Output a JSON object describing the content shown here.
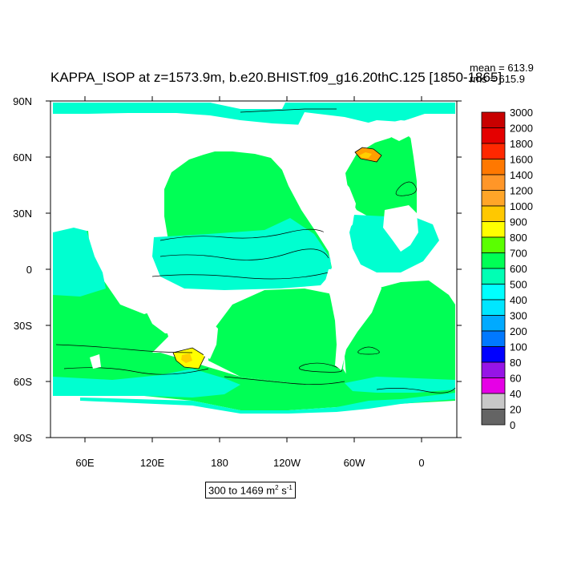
{
  "map": {
    "title": "KAPPA_ISOP at z=1573.9m, b.e20.BHIST.f09_g16.20thC.125 [1850-1865]",
    "stats": {
      "mean": "mean = 613.9",
      "rms": "rms = 615.9"
    },
    "units": {
      "range_text": "300 to 1469 m",
      "exp1": "2",
      "unit2": " s",
      "exp2": "-1"
    },
    "lat_labels": [
      "90N",
      "60N",
      "30N",
      "0",
      "30S",
      "60S",
      "90S"
    ],
    "lon_labels": [
      "60E",
      "120E",
      "180",
      "120W",
      "60W",
      "0"
    ],
    "colors": {
      "ocean_main": "#00ff55",
      "ocean_band": "#00ffd0",
      "land": "#ffffff",
      "contour": "#000000",
      "high_1000": "#ffd000",
      "high_1200": "#ffa000",
      "high_1400": "#ff8c22"
    }
  },
  "legend": {
    "levels": [
      {
        "label": "3000",
        "color": "#c80000"
      },
      {
        "label": "2000",
        "color": "#e40000"
      },
      {
        "label": "1800",
        "color": "#ff2800"
      },
      {
        "label": "1600",
        "color": "#ff7800"
      },
      {
        "label": "1400",
        "color": "#ff9628"
      },
      {
        "label": "1200",
        "color": "#ffa528"
      },
      {
        "label": "1000",
        "color": "#ffc800"
      },
      {
        "label": "900",
        "color": "#ffff00"
      },
      {
        "label": "800",
        "color": "#5aff00"
      },
      {
        "label": "700",
        "color": "#00ff55"
      },
      {
        "label": "600",
        "color": "#00ffb4"
      },
      {
        "label": "500",
        "color": "#00ffff"
      },
      {
        "label": "400",
        "color": "#00e6ff"
      },
      {
        "label": "300",
        "color": "#00aaff"
      },
      {
        "label": "200",
        "color": "#0078ff"
      },
      {
        "label": "100",
        "color": "#0000ff"
      },
      {
        "label": "80",
        "color": "#9614e6"
      },
      {
        "label": "60",
        "color": "#e600e6"
      },
      {
        "label": "40",
        "color": "#c8c8c8"
      },
      {
        "label": "20",
        "color": "#646464"
      },
      {
        "label": "0",
        "color": ""
      }
    ]
  }
}
